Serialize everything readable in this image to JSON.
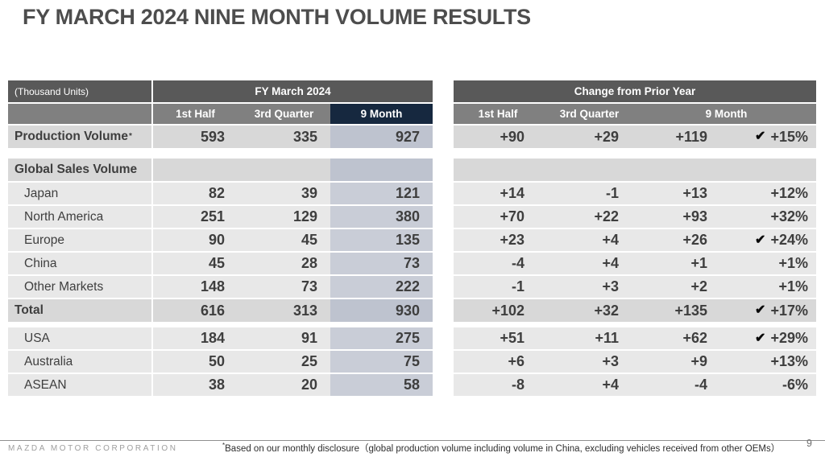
{
  "title": "FY MARCH 2024 NINE MONTH VOLUME RESULTS",
  "colors": {
    "header_dark_gray": "#595959",
    "header_mid_gray": "#808080",
    "header_navy_accent": "#16283f",
    "row_regular": "#e8e8e8",
    "row_section": "#d8d8d8",
    "nine_month_tint": "#c9cdd7",
    "text": "#3e3e3e"
  },
  "icons": {
    "check": "✔"
  },
  "left_table": {
    "units_label": "(Thousand Units)",
    "group_header": "FY March 2024",
    "col_headers": [
      "1st Half",
      "3rd Quarter",
      "9 Month"
    ]
  },
  "right_table": {
    "group_header": "Change from Prior Year",
    "col_headers": [
      "1st Half",
      "3rd Quarter",
      "9 Month"
    ]
  },
  "rows": [
    {
      "label": "Production Volume",
      "sup": "*",
      "style": "section",
      "gap_after": 13,
      "volumes": [
        "593",
        "335",
        "927"
      ],
      "changes": [
        "+90",
        "+29",
        "+119"
      ],
      "pct": "+15%",
      "check": true
    },
    {
      "label": "Global Sales Volume",
      "sup": "",
      "style": "section",
      "gap_after": 2,
      "volumes": [
        "",
        "",
        ""
      ],
      "changes": [
        "",
        "",
        ""
      ],
      "pct": "",
      "check": false
    },
    {
      "label": "Japan",
      "sup": "",
      "style": "regular",
      "gap_after": 2,
      "volumes": [
        "82",
        "39",
        "121"
      ],
      "changes": [
        "+14",
        "-1",
        "+13"
      ],
      "pct": "+12%",
      "check": false
    },
    {
      "label": "North America",
      "sup": "",
      "style": "regular",
      "gap_after": 2,
      "volumes": [
        "251",
        "129",
        "380"
      ],
      "changes": [
        "+70",
        "+22",
        "+93"
      ],
      "pct": "+32%",
      "check": false
    },
    {
      "label": "Europe",
      "sup": "",
      "style": "regular",
      "gap_after": 2,
      "volumes": [
        "90",
        "45",
        "135"
      ],
      "changes": [
        "+23",
        "+4",
        "+26"
      ],
      "pct": "+24%",
      "check": true
    },
    {
      "label": "China",
      "sup": "",
      "style": "regular",
      "gap_after": 2,
      "volumes": [
        "45",
        "28",
        "73"
      ],
      "changes": [
        "-4",
        "+4",
        "+1"
      ],
      "pct": "+1%",
      "check": false
    },
    {
      "label": "Other Markets",
      "sup": "",
      "style": "regular",
      "gap_after": 2,
      "volumes": [
        "148",
        "73",
        "222"
      ],
      "changes": [
        "-1",
        "+3",
        "+2"
      ],
      "pct": "+1%",
      "check": false
    },
    {
      "label": "Total",
      "sup": "",
      "style": "section",
      "gap_after": 7,
      "volumes": [
        "616",
        "313",
        "930"
      ],
      "changes": [
        "+102",
        "+32",
        "+135"
      ],
      "pct": "+17%",
      "check": true
    },
    {
      "label": "USA",
      "sup": "",
      "style": "regular",
      "gap_after": 2,
      "volumes": [
        "184",
        "91",
        "275"
      ],
      "changes": [
        "+51",
        "+11",
        "+62"
      ],
      "pct": "+29%",
      "check": true
    },
    {
      "label": "Australia",
      "sup": "",
      "style": "regular",
      "gap_after": 2,
      "volumes": [
        "50",
        "25",
        "75"
      ],
      "changes": [
        "+6",
        "+3",
        "+9"
      ],
      "pct": "+13%",
      "check": false
    },
    {
      "label": "ASEAN",
      "sup": "",
      "style": "regular",
      "gap_after": 2,
      "volumes": [
        "38",
        "20",
        "58"
      ],
      "changes": [
        "-8",
        "+4",
        "-4"
      ],
      "pct": "-6%",
      "check": false
    }
  ],
  "footer": {
    "company": "MAZDA MOTOR CORPORATION",
    "footnote_sup": "*",
    "footnote_text": "Based on our monthly disclosure（global production volume including volume in China, excluding vehicles received from other OEMs）",
    "page_number": "9"
  }
}
